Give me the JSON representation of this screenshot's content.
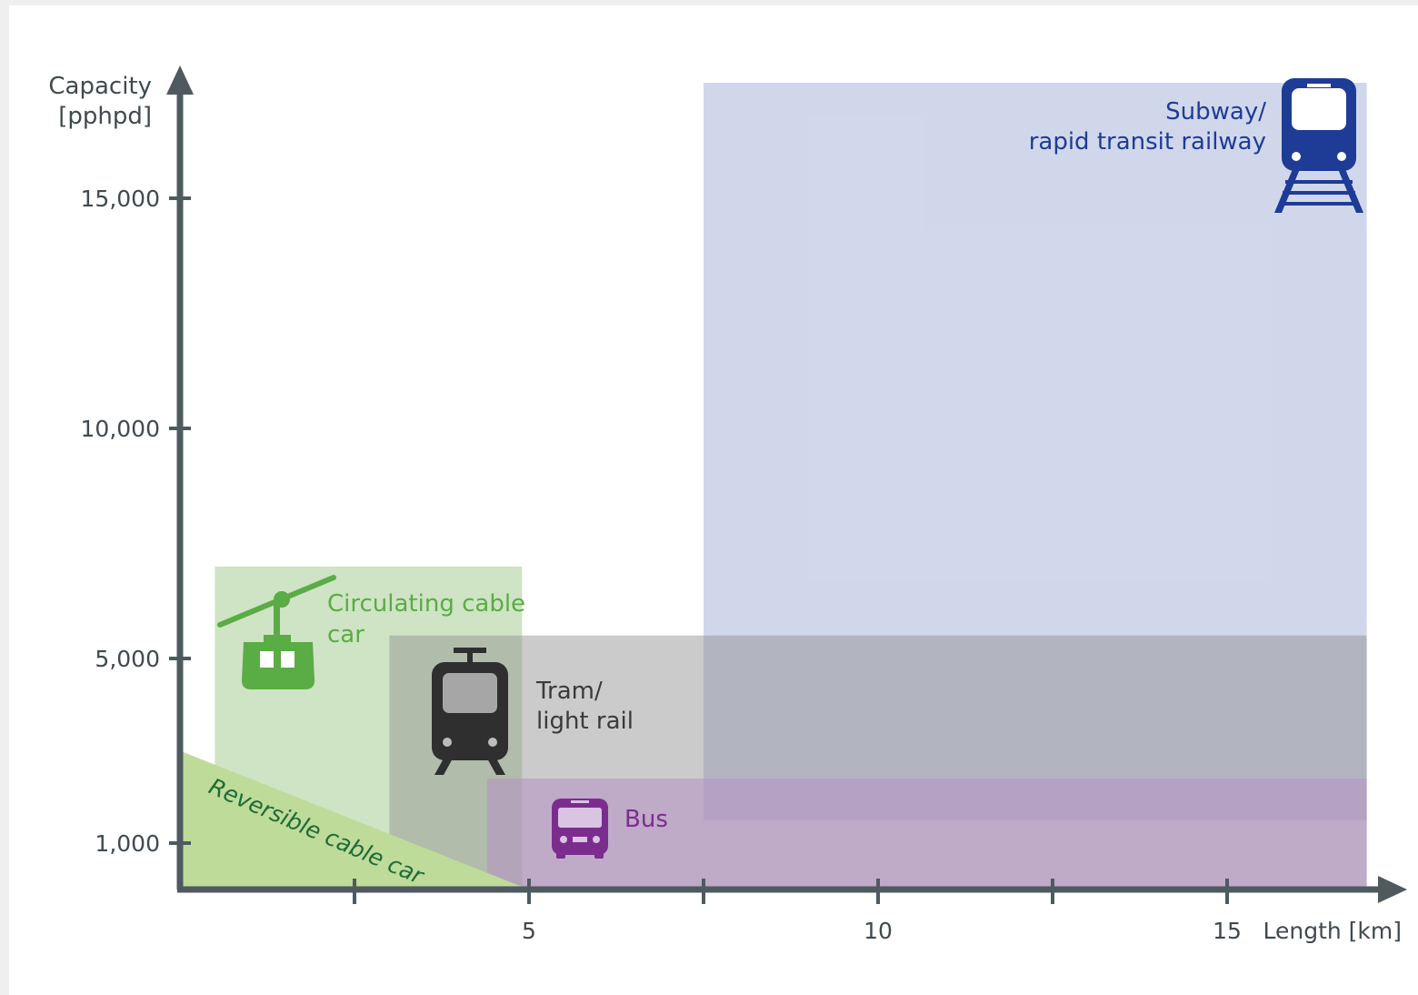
{
  "chart_data": {
    "type": "area",
    "title": "",
    "xlabel": "Length [km]",
    "ylabel_line1": "Capacity",
    "ylabel_line2": "[pphpd]",
    "x_ticks": [
      {
        "value": 2.5,
        "label": ""
      },
      {
        "value": 5,
        "label": "5"
      },
      {
        "value": 7.5,
        "label": ""
      },
      {
        "value": 10,
        "label": "10"
      },
      {
        "value": 12.5,
        "label": ""
      },
      {
        "value": 15,
        "label": "15"
      }
    ],
    "y_ticks": [
      {
        "value": 1000,
        "label": "1,000"
      },
      {
        "value": 5000,
        "label": "5,000"
      },
      {
        "value": 10000,
        "label": "10,000"
      },
      {
        "value": 15000,
        "label": "15,000"
      }
    ],
    "series": [
      {
        "name": "Circulating cable car",
        "label_line1": "Circulating cable",
        "label_line2": "car",
        "color": "#5aac44",
        "fill": "#cfe3c5",
        "region": {
          "x_min": 0.5,
          "x_max": 4.9,
          "y_min": 0,
          "y_max": 7000
        }
      },
      {
        "name": "Tram/ light rail",
        "label_line1": "Tram/",
        "label_line2": "light rail",
        "color": "#3a3a3a",
        "fill": "#8c8c8c",
        "region": {
          "x_min": 3.0,
          "x_max": 17,
          "y_min": 0,
          "y_max": 5500
        }
      },
      {
        "name": "Bus",
        "label_line1": "Bus",
        "color": "#7b2d8e",
        "fill": "#b78fc6",
        "region": {
          "x_min": 4.4,
          "x_max": 17,
          "y_min": 0,
          "y_max": 2400
        }
      },
      {
        "name": "Subway/ rapid transit railway",
        "label_line1": "Subway/",
        "label_line2": "rapid transit railway",
        "color": "#1e3c96",
        "fill": "#b9c2e0",
        "region": {
          "x_min": 7.5,
          "x_max": 17,
          "y_min": 1500,
          "y_max": 17500
        }
      },
      {
        "name": "Reversible cable car",
        "label_line1": "Reversible cable car",
        "color": "#1e6b37",
        "fill": "#bedb9a",
        "triangle": {
          "x_max": 5,
          "y_at_zero": 3000
        }
      }
    ],
    "xlim": [
      0,
      17.5
    ],
    "ylim": [
      0,
      17500
    ],
    "grid": false,
    "legend": "none"
  },
  "icons": {
    "cable_car": "gondola-icon",
    "tram": "tram-icon",
    "bus": "bus-icon",
    "subway": "train-icon"
  }
}
